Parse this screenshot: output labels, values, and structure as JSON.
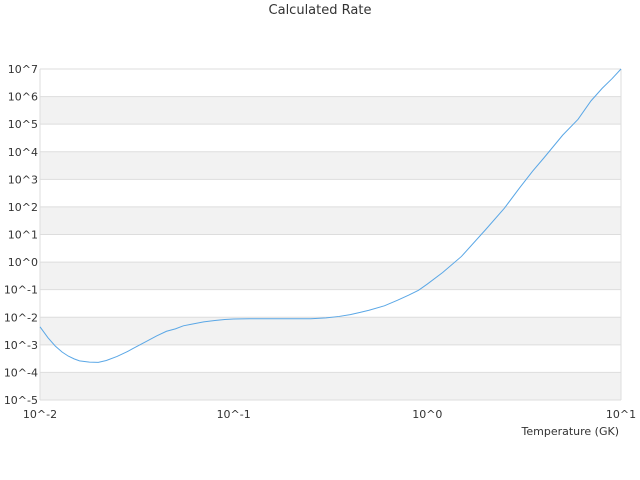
{
  "chart_data": {
    "type": "line",
    "title": "Calculated Rate",
    "xlabel": "Temperature (GK)",
    "ylabel": "",
    "x_scale": "log",
    "y_scale": "log",
    "xlim": [
      0.01,
      10
    ],
    "ylim": [
      1e-05,
      10000000.0
    ],
    "x_ticks": [
      {
        "value": 0.01,
        "label": "10^-2"
      },
      {
        "value": 0.1,
        "label": "10^-1"
      },
      {
        "value": 1,
        "label": "10^0"
      },
      {
        "value": 10,
        "label": "10^1"
      }
    ],
    "y_ticks": [
      {
        "value": 1e-05,
        "label": "10^-5"
      },
      {
        "value": 0.0001,
        "label": "10^-4"
      },
      {
        "value": 0.001,
        "label": "10^-3"
      },
      {
        "value": 0.01,
        "label": "10^-2"
      },
      {
        "value": 0.1,
        "label": "10^-1"
      },
      {
        "value": 1.0,
        "label": "10^0"
      },
      {
        "value": 10.0,
        "label": "10^1"
      },
      {
        "value": 100.0,
        "label": "10^2"
      },
      {
        "value": 1000.0,
        "label": "10^3"
      },
      {
        "value": 10000.0,
        "label": "10^4"
      },
      {
        "value": 100000.0,
        "label": "10^5"
      },
      {
        "value": 1000000.0,
        "label": "10^6"
      },
      {
        "value": 10000000.0,
        "label": "10^7"
      }
    ],
    "grid": true,
    "band_colors": [
      "#f2f2f2",
      "#ffffff"
    ],
    "series": [
      {
        "color": "#5aa7e6",
        "x": [
          0.01,
          0.011,
          0.012,
          0.013,
          0.014,
          0.015,
          0.016,
          0.018,
          0.02,
          0.022,
          0.025,
          0.028,
          0.03,
          0.035,
          0.04,
          0.045,
          0.05,
          0.055,
          0.06,
          0.07,
          0.08,
          0.09,
          0.1,
          0.12,
          0.15,
          0.2,
          0.25,
          0.3,
          0.35,
          0.4,
          0.45,
          0.5,
          0.6,
          0.7,
          0.8,
          0.9,
          1.0,
          1.2,
          1.5,
          2.0,
          2.5,
          3.0,
          3.5,
          4.0,
          5.0,
          6.0,
          7.0,
          8.0,
          9.0,
          10.0
        ],
        "y": [
          0.0045,
          0.0018,
          0.0009,
          0.00055,
          0.00039,
          0.00031,
          0.000262,
          0.000236,
          0.000232,
          0.00027,
          0.00038,
          0.00055,
          0.00072,
          0.00128,
          0.0021,
          0.0031,
          0.0038,
          0.0049,
          0.0055,
          0.0068,
          0.0076,
          0.0083,
          0.0086,
          0.0088,
          0.0088,
          0.0088,
          0.0088,
          0.0095,
          0.0107,
          0.0125,
          0.015,
          0.018,
          0.026,
          0.041,
          0.063,
          0.095,
          0.16,
          0.42,
          1.6,
          15,
          90,
          500,
          2000,
          6000,
          40000,
          150000,
          700000,
          2000000,
          4500000,
          10000000
        ]
      }
    ]
  }
}
